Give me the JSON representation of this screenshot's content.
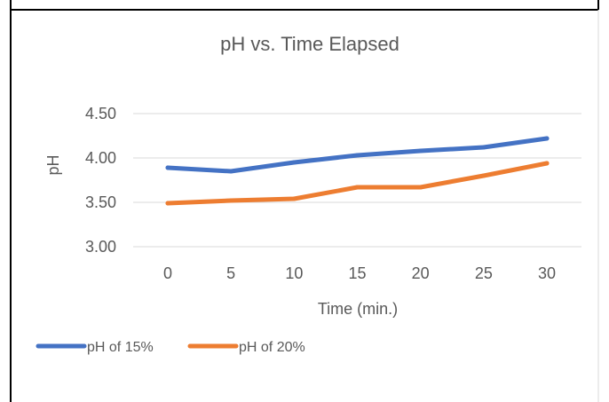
{
  "chart_data": {
    "type": "line",
    "title": "pH vs. Time Elapsed",
    "xlabel": "Time (min.)",
    "ylabel": "pH",
    "x": [
      0,
      5,
      10,
      15,
      20,
      25,
      30
    ],
    "x_tick_labels": [
      "0",
      "5",
      "10",
      "15",
      "20",
      "25",
      "30"
    ],
    "ylim": [
      3.0,
      4.5
    ],
    "y_ticks": [
      3.0,
      3.5,
      4.0,
      4.5
    ],
    "y_tick_labels": [
      "3.00",
      "3.50",
      "4.00",
      "4.50"
    ],
    "grid": true,
    "legend_position": "bottom-left",
    "series": [
      {
        "name": "pH of 15%",
        "color": "#4472C4",
        "values": [
          3.89,
          3.85,
          3.95,
          4.03,
          4.08,
          4.12,
          4.22
        ]
      },
      {
        "name": "pH of 20%",
        "color": "#ED7D31",
        "values": [
          3.49,
          3.52,
          3.54,
          3.67,
          3.67,
          3.8,
          3.94
        ]
      }
    ]
  }
}
